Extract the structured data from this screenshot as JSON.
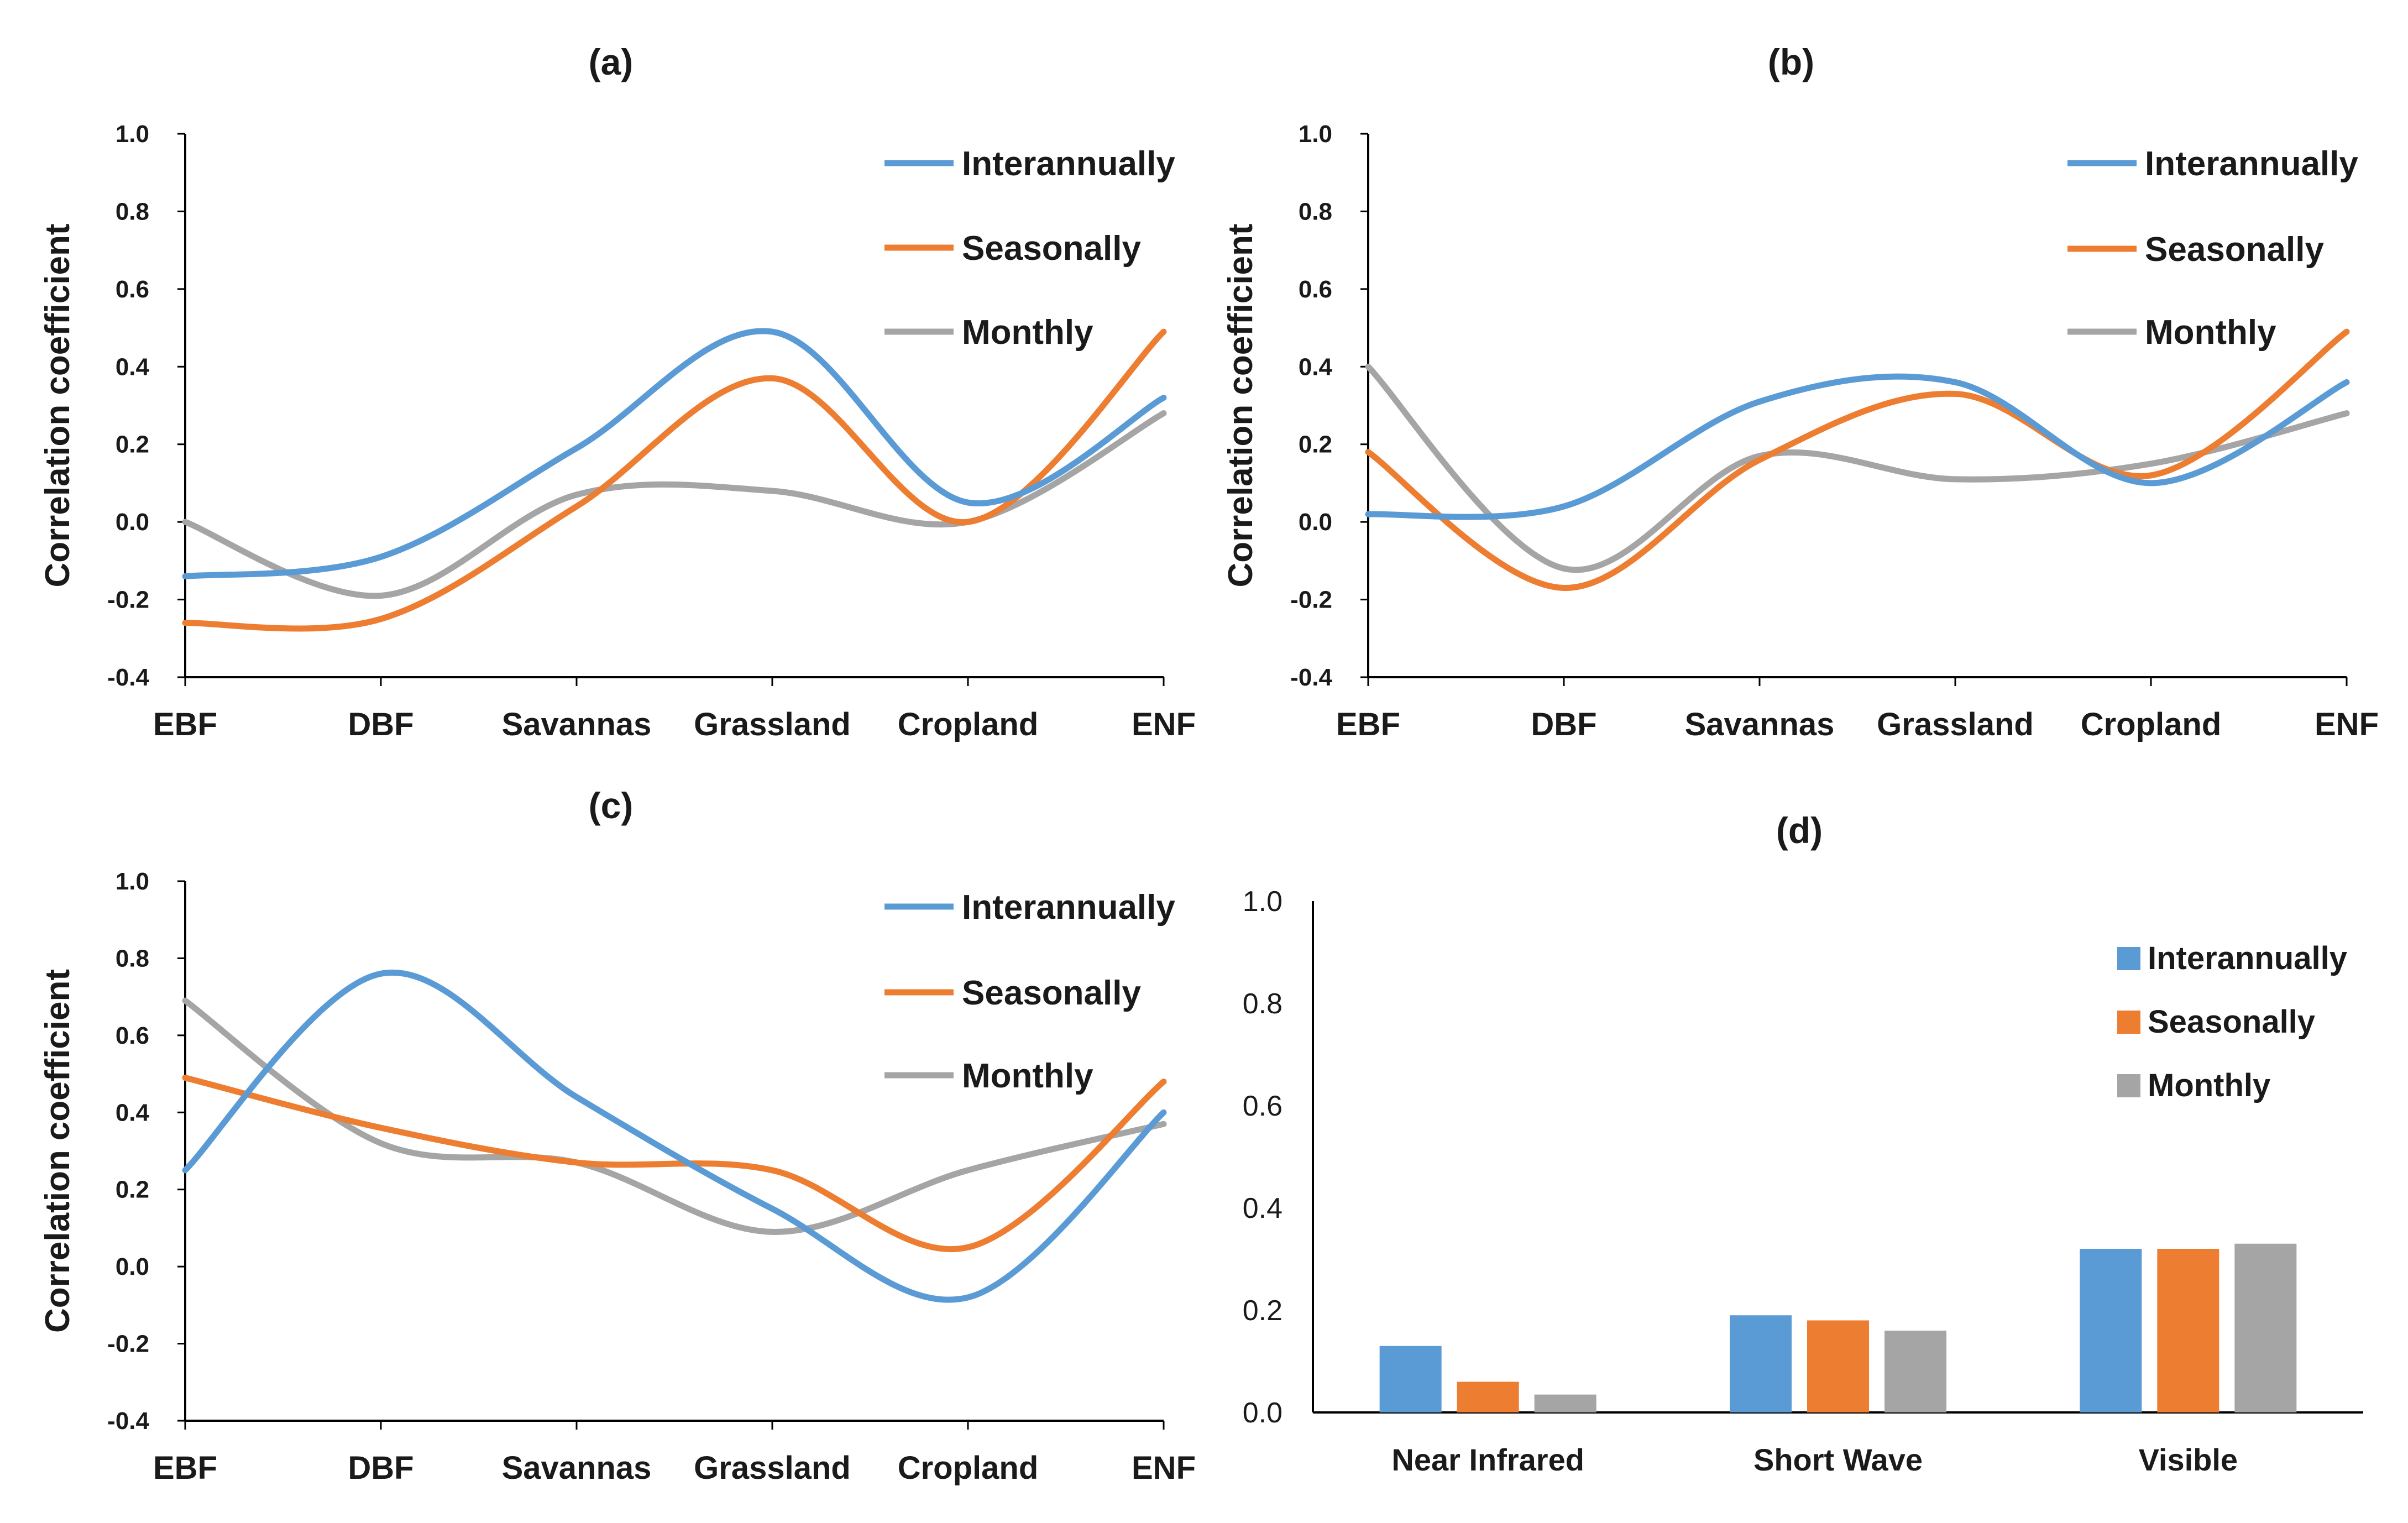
{
  "chart_data": [
    {
      "id": "a",
      "type": "line",
      "title": "(a)",
      "ylabel": "Correlation coefficient",
      "xlabel": "",
      "ylim": [
        -0.4,
        1.0
      ],
      "yticks": [
        "1.0",
        "0.8",
        "0.6",
        "0.4",
        "0.2",
        "0.0",
        "-0.2",
        "-0.4"
      ],
      "categories": [
        "EBF",
        "DBF",
        "Savannas",
        "Grassland",
        "Cropland",
        "ENF"
      ],
      "legend": "top-right",
      "series": [
        {
          "name": "Interannually",
          "color": "#5b9bd5",
          "values": [
            -0.14,
            -0.09,
            0.19,
            0.49,
            0.05,
            0.32
          ]
        },
        {
          "name": "Seasonally",
          "color": "#ed7d31",
          "values": [
            -0.26,
            -0.25,
            0.04,
            0.37,
            0.0,
            0.49
          ]
        },
        {
          "name": "Monthly",
          "color": "#a5a5a5",
          "values": [
            0.0,
            -0.19,
            0.07,
            0.08,
            0.0,
            0.28
          ]
        }
      ]
    },
    {
      "id": "b",
      "type": "line",
      "title": "(b)",
      "ylabel": "Correlation coefficient",
      "xlabel": "",
      "ylim": [
        -0.4,
        1.0
      ],
      "yticks": [
        "1.0",
        "0.8",
        "0.6",
        "0.4",
        "0.2",
        "0.0",
        "-0.2",
        "-0.4"
      ],
      "categories": [
        "EBF",
        "DBF",
        "Savannas",
        "Grassland",
        "Cropland",
        "ENF"
      ],
      "legend": "top-right",
      "series": [
        {
          "name": "Interannually",
          "color": "#5b9bd5",
          "values": [
            0.02,
            0.04,
            0.31,
            0.36,
            0.1,
            0.36
          ]
        },
        {
          "name": "Seasonally",
          "color": "#ed7d31",
          "values": [
            0.18,
            -0.17,
            0.16,
            0.33,
            0.12,
            0.49
          ]
        },
        {
          "name": "Monthly",
          "color": "#a5a5a5",
          "values": [
            0.4,
            -0.12,
            0.17,
            0.11,
            0.15,
            0.28
          ]
        }
      ]
    },
    {
      "id": "c",
      "type": "line",
      "title": "(c)",
      "ylabel": "Correlation coefficient",
      "xlabel": "",
      "ylim": [
        -0.4,
        1.0
      ],
      "yticks": [
        "1.0",
        "0.8",
        "0.6",
        "0.4",
        "0.2",
        "0.0",
        "-0.2",
        "-0.4"
      ],
      "categories": [
        "EBF",
        "DBF",
        "Savannas",
        "Grassland",
        "Cropland",
        "ENF"
      ],
      "legend": "top-right",
      "series": [
        {
          "name": "Interannually",
          "color": "#5b9bd5",
          "values": [
            0.25,
            0.76,
            0.44,
            0.15,
            -0.08,
            0.4
          ]
        },
        {
          "name": "Seasonally",
          "color": "#ed7d31",
          "values": [
            0.49,
            0.36,
            0.27,
            0.25,
            0.05,
            0.48
          ]
        },
        {
          "name": "Monthly",
          "color": "#a5a5a5",
          "values": [
            0.69,
            0.32,
            0.27,
            0.09,
            0.25,
            0.37
          ]
        }
      ]
    },
    {
      "id": "d",
      "type": "bar",
      "title": "(d)",
      "ylabel": "",
      "xlabel": "",
      "ylim": [
        0.0,
        1.0
      ],
      "yticks": [
        "1.0",
        "0.8",
        "0.6",
        "0.4",
        "0.2",
        "0.0"
      ],
      "categories": [
        "Near Infrared",
        "Short Wave",
        "Visible"
      ],
      "legend": "top-right",
      "series": [
        {
          "name": "Interannually",
          "color": "#5b9bd5",
          "values": [
            0.13,
            0.19,
            0.32
          ]
        },
        {
          "name": "Seasonally",
          "color": "#ed7d31",
          "values": [
            0.06,
            0.18,
            0.32
          ]
        },
        {
          "name": "Monthly",
          "color": "#a5a5a5",
          "values": [
            0.035,
            0.16,
            0.33
          ]
        }
      ]
    }
  ]
}
